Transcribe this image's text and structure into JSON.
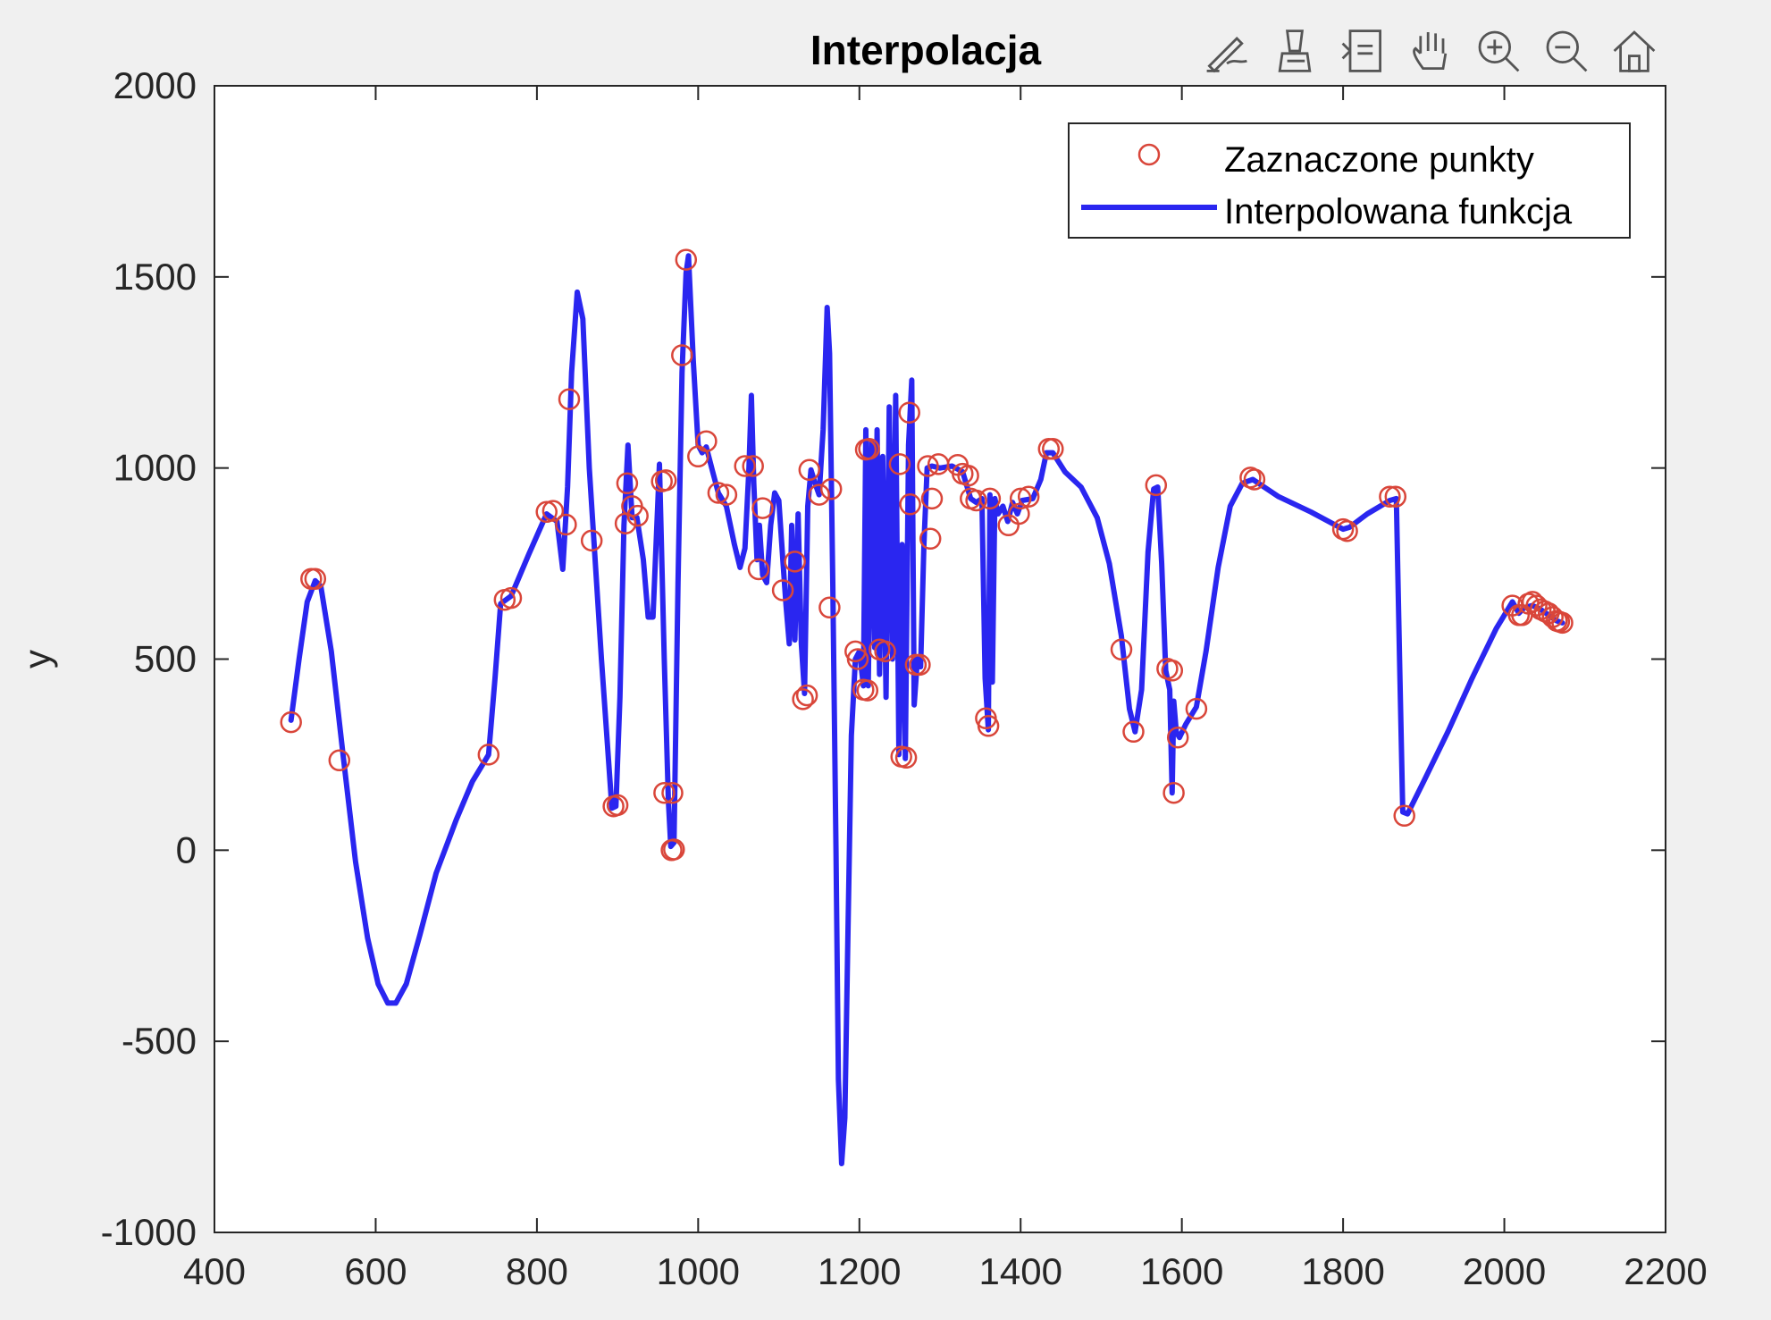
{
  "toolbar": {
    "icons": [
      "brush-edit-icon",
      "data-tips-icon",
      "datacursor-icon",
      "pan-hand-icon",
      "zoom-in-icon",
      "zoom-out-icon",
      "home-icon"
    ]
  },
  "chart_data": {
    "type": "line",
    "title": "Interpolacja",
    "xlabel": "",
    "ylabel": "y",
    "xlim": [
      400,
      2200
    ],
    "ylim": [
      -1000,
      2000
    ],
    "xticks": [
      400,
      600,
      800,
      1000,
      1200,
      1400,
      1600,
      1800,
      2000,
      2200
    ],
    "yticks": [
      -1000,
      -500,
      0,
      500,
      1000,
      1500,
      2000
    ],
    "grid": false,
    "legend": {
      "position": "top-right",
      "entries": [
        "Zaznaczone punkty",
        "Interpolowana funkcja"
      ]
    },
    "colors": {
      "points": "#d9463a",
      "line": "#2a26f0"
    },
    "series": [
      {
        "name": "Zaznaczone punkty",
        "kind": "scatter",
        "points": [
          [
            495,
            335
          ],
          [
            520,
            710
          ],
          [
            525,
            710
          ],
          [
            555,
            235
          ],
          [
            740,
            250
          ],
          [
            760,
            655
          ],
          [
            768,
            660
          ],
          [
            812,
            885
          ],
          [
            820,
            888
          ],
          [
            836,
            852
          ],
          [
            840,
            1180
          ],
          [
            868,
            810
          ],
          [
            895,
            115
          ],
          [
            900,
            118
          ],
          [
            910,
            855
          ],
          [
            912,
            960
          ],
          [
            918,
            900
          ],
          [
            925,
            875
          ],
          [
            955,
            965
          ],
          [
            960,
            968
          ],
          [
            958,
            150
          ],
          [
            968,
            150
          ],
          [
            967,
            0
          ],
          [
            970,
            2
          ],
          [
            980,
            1295
          ],
          [
            985,
            1545
          ],
          [
            1000,
            1030
          ],
          [
            1010,
            1070
          ],
          [
            1025,
            935
          ],
          [
            1035,
            930
          ],
          [
            1058,
            1005
          ],
          [
            1068,
            1005
          ],
          [
            1075,
            735
          ],
          [
            1080,
            895
          ],
          [
            1105,
            680
          ],
          [
            1120,
            755
          ],
          [
            1130,
            395
          ],
          [
            1135,
            405
          ],
          [
            1138,
            995
          ],
          [
            1150,
            930
          ],
          [
            1165,
            945
          ],
          [
            1163,
            635
          ],
          [
            1195,
            520
          ],
          [
            1198,
            500
          ],
          [
            1205,
            420
          ],
          [
            1210,
            418
          ],
          [
            1208,
            1048
          ],
          [
            1212,
            1050
          ],
          [
            1225,
            525
          ],
          [
            1232,
            520
          ],
          [
            1250,
            1010
          ],
          [
            1252,
            245
          ],
          [
            1258,
            242
          ],
          [
            1262,
            1145
          ],
          [
            1263,
            905
          ],
          [
            1270,
            485
          ],
          [
            1275,
            485
          ],
          [
            1285,
            1005
          ],
          [
            1288,
            815
          ],
          [
            1290,
            920
          ],
          [
            1298,
            1010
          ],
          [
            1322,
            1008
          ],
          [
            1328,
            985
          ],
          [
            1335,
            980
          ],
          [
            1338,
            920
          ],
          [
            1345,
            915
          ],
          [
            1357,
            345
          ],
          [
            1360,
            325
          ],
          [
            1362,
            920
          ],
          [
            1385,
            850
          ],
          [
            1398,
            880
          ],
          [
            1400,
            920
          ],
          [
            1410,
            925
          ],
          [
            1435,
            1050
          ],
          [
            1440,
            1050
          ],
          [
            1525,
            525
          ],
          [
            1540,
            310
          ],
          [
            1568,
            955
          ],
          [
            1582,
            475
          ],
          [
            1588,
            470
          ],
          [
            1590,
            150
          ],
          [
            1595,
            295
          ],
          [
            1618,
            370
          ],
          [
            1685,
            975
          ],
          [
            1690,
            970
          ],
          [
            1800,
            840
          ],
          [
            1805,
            835
          ],
          [
            1858,
            925
          ],
          [
            1865,
            925
          ],
          [
            1876,
            90
          ],
          [
            2010,
            640
          ],
          [
            2018,
            615
          ],
          [
            2022,
            615
          ],
          [
            2030,
            645
          ],
          [
            2035,
            650
          ],
          [
            2040,
            640
          ],
          [
            2045,
            630
          ],
          [
            2050,
            625
          ],
          [
            2055,
            620
          ],
          [
            2060,
            610
          ],
          [
            2065,
            600
          ],
          [
            2068,
            598
          ],
          [
            2072,
            595
          ]
        ]
      },
      {
        "name": "Interpolowana funkcja",
        "kind": "line",
        "points": [
          [
            495,
            340
          ],
          [
            505,
            500
          ],
          [
            515,
            650
          ],
          [
            525,
            705
          ],
          [
            532,
            690
          ],
          [
            545,
            520
          ],
          [
            560,
            240
          ],
          [
            575,
            -30
          ],
          [
            590,
            -230
          ],
          [
            603,
            -350
          ],
          [
            615,
            -400
          ],
          [
            625,
            -400
          ],
          [
            638,
            -350
          ],
          [
            655,
            -220
          ],
          [
            675,
            -60
          ],
          [
            700,
            80
          ],
          [
            720,
            180
          ],
          [
            740,
            250
          ],
          [
            748,
            450
          ],
          [
            755,
            645
          ],
          [
            768,
            665
          ],
          [
            790,
            775
          ],
          [
            812,
            880
          ],
          [
            825,
            860
          ],
          [
            832,
            735
          ],
          [
            838,
            950
          ],
          [
            843,
            1250
          ],
          [
            850,
            1460
          ],
          [
            857,
            1390
          ],
          [
            865,
            1000
          ],
          [
            880,
            500
          ],
          [
            893,
            110
          ],
          [
            898,
            115
          ],
          [
            903,
            400
          ],
          [
            908,
            850
          ],
          [
            913,
            1060
          ],
          [
            918,
            870
          ],
          [
            924,
            870
          ],
          [
            932,
            760
          ],
          [
            938,
            610
          ],
          [
            944,
            610
          ],
          [
            952,
            1010
          ],
          [
            958,
            500
          ],
          [
            963,
            130
          ],
          [
            966,
            10
          ],
          [
            970,
            20
          ],
          [
            975,
            700
          ],
          [
            980,
            1250
          ],
          [
            985,
            1510
          ],
          [
            988,
            1555
          ],
          [
            994,
            1280
          ],
          [
            1000,
            1060
          ],
          [
            1005,
            1040
          ],
          [
            1010,
            1055
          ],
          [
            1018,
            990
          ],
          [
            1025,
            935
          ],
          [
            1035,
            900
          ],
          [
            1045,
            800
          ],
          [
            1052,
            740
          ],
          [
            1058,
            790
          ],
          [
            1063,
            1000
          ],
          [
            1066,
            1190
          ],
          [
            1069,
            960
          ],
          [
            1073,
            760
          ],
          [
            1076,
            850
          ],
          [
            1080,
            720
          ],
          [
            1085,
            700
          ],
          [
            1090,
            850
          ],
          [
            1095,
            935
          ],
          [
            1100,
            915
          ],
          [
            1105,
            760
          ],
          [
            1109,
            640
          ],
          [
            1113,
            540
          ],
          [
            1116,
            850
          ],
          [
            1120,
            550
          ],
          [
            1124,
            880
          ],
          [
            1128,
            540
          ],
          [
            1132,
            410
          ],
          [
            1136,
            900
          ],
          [
            1140,
            995
          ],
          [
            1145,
            960
          ],
          [
            1150,
            930
          ],
          [
            1155,
            1100
          ],
          [
            1160,
            1420
          ],
          [
            1163,
            1300
          ],
          [
            1167,
            700
          ],
          [
            1171,
            0
          ],
          [
            1174,
            -600
          ],
          [
            1178,
            -820
          ],
          [
            1182,
            -700
          ],
          [
            1186,
            -200
          ],
          [
            1190,
            300
          ],
          [
            1195,
            500
          ],
          [
            1200,
            520
          ],
          [
            1205,
            430
          ],
          [
            1208,
            1100
          ],
          [
            1211,
            430
          ],
          [
            1215,
            1070
          ],
          [
            1219,
            530
          ],
          [
            1222,
            1100
          ],
          [
            1225,
            460
          ],
          [
            1229,
            1030
          ],
          [
            1233,
            400
          ],
          [
            1237,
            1160
          ],
          [
            1241,
            500
          ],
          [
            1245,
            1190
          ],
          [
            1249,
            250
          ],
          [
            1253,
            800
          ],
          [
            1257,
            240
          ],
          [
            1261,
            1060
          ],
          [
            1265,
            1230
          ],
          [
            1268,
            380
          ],
          [
            1272,
            500
          ],
          [
            1276,
            480
          ],
          [
            1280,
            800
          ],
          [
            1284,
            1000
          ],
          [
            1290,
            1005
          ],
          [
            1300,
            1000
          ],
          [
            1315,
            1005
          ],
          [
            1328,
            990
          ],
          [
            1338,
            920
          ],
          [
            1345,
            910
          ],
          [
            1352,
            920
          ],
          [
            1356,
            450
          ],
          [
            1360,
            315
          ],
          [
            1362,
            930
          ],
          [
            1365,
            440
          ],
          [
            1368,
            920
          ],
          [
            1372,
            880
          ],
          [
            1378,
            900
          ],
          [
            1384,
            860
          ],
          [
            1390,
            910
          ],
          [
            1396,
            880
          ],
          [
            1402,
            915
          ],
          [
            1415,
            920
          ],
          [
            1425,
            970
          ],
          [
            1432,
            1040
          ],
          [
            1440,
            1040
          ],
          [
            1455,
            990
          ],
          [
            1475,
            950
          ],
          [
            1495,
            870
          ],
          [
            1510,
            750
          ],
          [
            1525,
            560
          ],
          [
            1535,
            370
          ],
          [
            1542,
            310
          ],
          [
            1550,
            420
          ],
          [
            1558,
            780
          ],
          [
            1565,
            945
          ],
          [
            1570,
            950
          ],
          [
            1575,
            750
          ],
          [
            1580,
            470
          ],
          [
            1585,
            420
          ],
          [
            1588,
            150
          ],
          [
            1590,
            390
          ],
          [
            1593,
            310
          ],
          [
            1597,
            295
          ],
          [
            1605,
            330
          ],
          [
            1618,
            375
          ],
          [
            1630,
            520
          ],
          [
            1645,
            740
          ],
          [
            1660,
            900
          ],
          [
            1675,
            960
          ],
          [
            1688,
            970
          ],
          [
            1720,
            925
          ],
          [
            1760,
            885
          ],
          [
            1800,
            840
          ],
          [
            1808,
            845
          ],
          [
            1830,
            880
          ],
          [
            1858,
            915
          ],
          [
            1866,
            920
          ],
          [
            1870,
            500
          ],
          [
            1874,
            100
          ],
          [
            1880,
            95
          ],
          [
            1900,
            180
          ],
          [
            1930,
            310
          ],
          [
            1960,
            450
          ],
          [
            1990,
            580
          ],
          [
            2010,
            650
          ],
          [
            2018,
            620
          ],
          [
            2025,
            635
          ],
          [
            2035,
            640
          ],
          [
            2045,
            630
          ],
          [
            2055,
            615
          ],
          [
            2065,
            600
          ],
          [
            2072,
            595
          ]
        ]
      }
    ]
  }
}
